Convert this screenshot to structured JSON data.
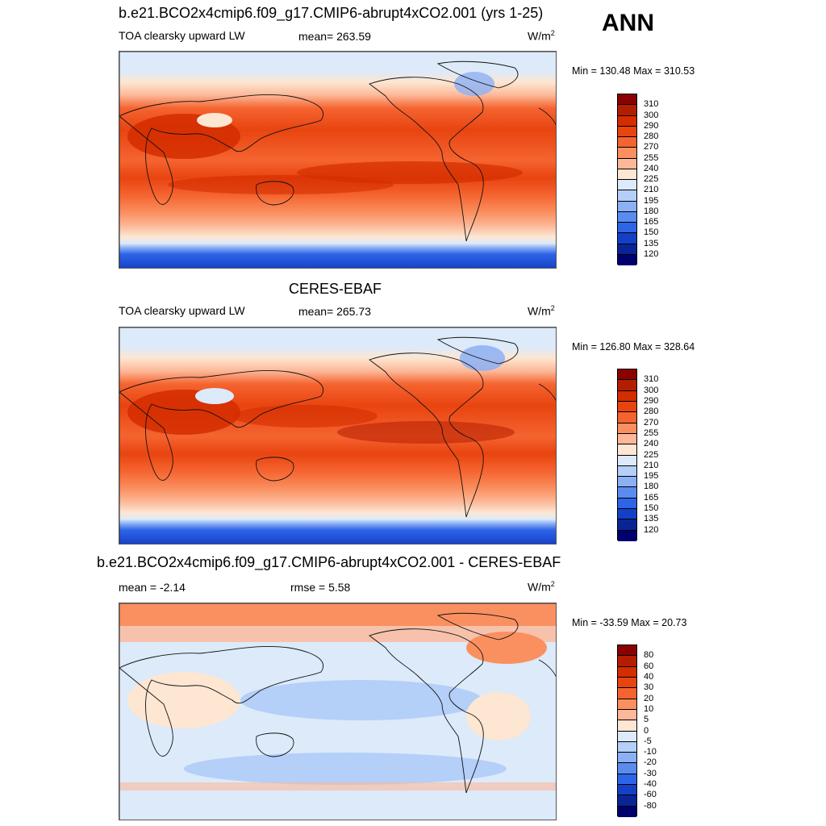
{
  "season": "ANN",
  "panels": [
    {
      "title": "b.e21.BCO2x4cmip6.f09_g17.CMIP6-abrupt4xCO2.001 (yrs 1-25)",
      "left_label": "TOA clearsky upward LW",
      "center_label": "mean= 263.59",
      "units": "W/m",
      "units_sup": "2",
      "minmax": "Min = 130.48 Max = 310.53",
      "kind": "abs"
    },
    {
      "title": "CERES-EBAF",
      "left_label": "TOA clearsky upward LW",
      "center_label": "mean= 265.73",
      "units": "W/m",
      "units_sup": "2",
      "minmax": "Min = 126.80 Max = 328.64",
      "kind": "obs"
    },
    {
      "title": "b.e21.BCO2x4cmip6.f09_g17.CMIP6-abrupt4xCO2.001 - CERES-EBAF",
      "left_label": "mean =  -2.14",
      "center_label": "rmse =   5.58",
      "units": "W/m",
      "units_sup": "2",
      "minmax": "Min = -33.59 Max =  20.73",
      "kind": "diff"
    }
  ],
  "colorbar_abs": {
    "labels": [
      "310",
      "300",
      "290",
      "280",
      "270",
      "255",
      "240",
      "225",
      "210",
      "195",
      "180",
      "165",
      "150",
      "135",
      "120"
    ],
    "colors": [
      "#8b0000",
      "#b41e00",
      "#d42d00",
      "#e84410",
      "#f56430",
      "#fa9060",
      "#fcb898",
      "#fde6d2",
      "#dceafa",
      "#b4cff8",
      "#8cb0f5",
      "#5a8cf0",
      "#2e64e8",
      "#1440c8",
      "#0a2496",
      "#00006e"
    ]
  },
  "colorbar_diff": {
    "labels": [
      "80",
      "60",
      "40",
      "30",
      "20",
      "10",
      "5",
      "0",
      "-5",
      "-10",
      "-20",
      "-30",
      "-40",
      "-60",
      "-80"
    ],
    "colors": [
      "#8b0000",
      "#b41e00",
      "#d42d00",
      "#e84410",
      "#f56430",
      "#fa9060",
      "#fcb898",
      "#fde6d2",
      "#dceafa",
      "#b4cff8",
      "#8cb0f5",
      "#5a8cf0",
      "#2e64e8",
      "#1440c8",
      "#0a2496",
      "#00006e"
    ]
  }
}
